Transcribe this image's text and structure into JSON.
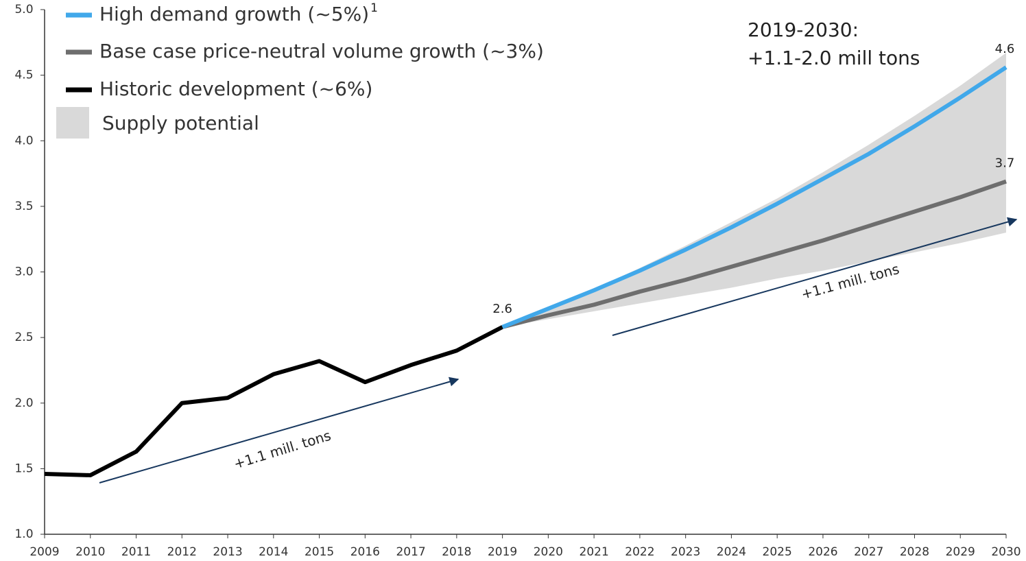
{
  "chart_data": {
    "type": "line",
    "x": [
      2009,
      2010,
      2011,
      2012,
      2013,
      2014,
      2015,
      2016,
      2017,
      2018,
      2019,
      2020,
      2021,
      2022,
      2023,
      2024,
      2025,
      2026,
      2027,
      2028,
      2029,
      2030
    ],
    "xlim": [
      2009,
      2030
    ],
    "xticks": [
      2009,
      2010,
      2011,
      2012,
      2013,
      2014,
      2015,
      2016,
      2017,
      2018,
      2019,
      2020,
      2021,
      2022,
      2023,
      2024,
      2025,
      2026,
      2027,
      2028,
      2029,
      2030
    ],
    "ylim": [
      1,
      5
    ],
    "yticks": [
      {
        "value": 1,
        "label": "1.0"
      },
      1.5,
      {
        "value": 2,
        "label": "2.0"
      },
      2.5,
      {
        "value": 3,
        "label": "3.0"
      },
      3.5,
      {
        "value": 4,
        "label": "4.0"
      },
      4.5,
      {
        "value": 5,
        "label": "5.0"
      }
    ],
    "legend_footnote": "1",
    "series": [
      {
        "name": "High demand growth (~5%)",
        "color": "#41a8ea",
        "values": [
          null,
          null,
          null,
          null,
          null,
          null,
          null,
          null,
          null,
          null,
          2.58,
          2.72,
          2.86,
          3.01,
          3.17,
          3.34,
          3.52,
          3.71,
          3.9,
          4.11,
          4.33,
          4.56
        ],
        "value_labels": [
          null,
          null,
          null,
          null,
          null,
          null,
          null,
          null,
          null,
          null,
          null,
          null,
          null,
          null,
          null,
          null,
          null,
          null,
          null,
          null,
          null,
          "4.6"
        ]
      },
      {
        "name": "Base case price-neutral volume growth (~3%)",
        "color": "#6e6e6e",
        "values": [
          null,
          null,
          null,
          null,
          null,
          null,
          null,
          null,
          null,
          null,
          2.58,
          2.67,
          2.75,
          2.85,
          2.94,
          3.04,
          3.14,
          3.24,
          3.35,
          3.46,
          3.57,
          3.69
        ],
        "value_labels": [
          null,
          null,
          null,
          null,
          null,
          null,
          null,
          null,
          null,
          null,
          "2.6",
          null,
          null,
          null,
          null,
          null,
          null,
          null,
          null,
          null,
          null,
          "3.7"
        ]
      },
      {
        "name": "Historic development (~6%)",
        "color": "#000000",
        "values": [
          1.46,
          1.45,
          1.63,
          2.0,
          2.04,
          2.22,
          2.32,
          2.16,
          2.29,
          2.4,
          2.58,
          null,
          null,
          null,
          null,
          null,
          null,
          null,
          null,
          null,
          null,
          null
        ]
      },
      {
        "name": "Supply potential",
        "color": "#d9d9d9",
        "kind": "band",
        "upper": [
          null,
          null,
          null,
          null,
          null,
          null,
          null,
          null,
          null,
          null,
          2.58,
          2.72,
          2.87,
          3.03,
          3.2,
          3.38,
          3.56,
          3.76,
          3.97,
          4.19,
          4.42,
          4.67
        ],
        "lower": [
          null,
          null,
          null,
          null,
          null,
          null,
          null,
          null,
          null,
          null,
          2.58,
          2.64,
          2.7,
          2.76,
          2.82,
          2.88,
          2.95,
          3.01,
          3.08,
          3.15,
          3.22,
          3.3
        ]
      }
    ],
    "annotations": [
      "2019-2030:",
      "+1.1-2.0 mill tons",
      "+1.1 mill. tons",
      "+1.1 mill. tons"
    ]
  }
}
